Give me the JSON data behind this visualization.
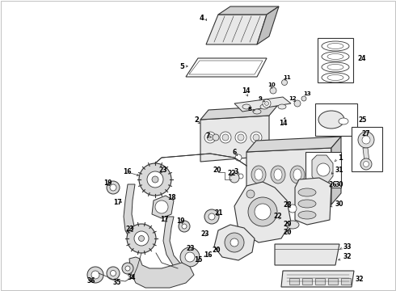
{
  "background_color": "#ffffff",
  "line_color": "#333333",
  "fig_width": 4.9,
  "fig_height": 3.6,
  "dpi": 100,
  "gray_fill": "#e8e8e8",
  "light_gray": "#f0f0f0"
}
